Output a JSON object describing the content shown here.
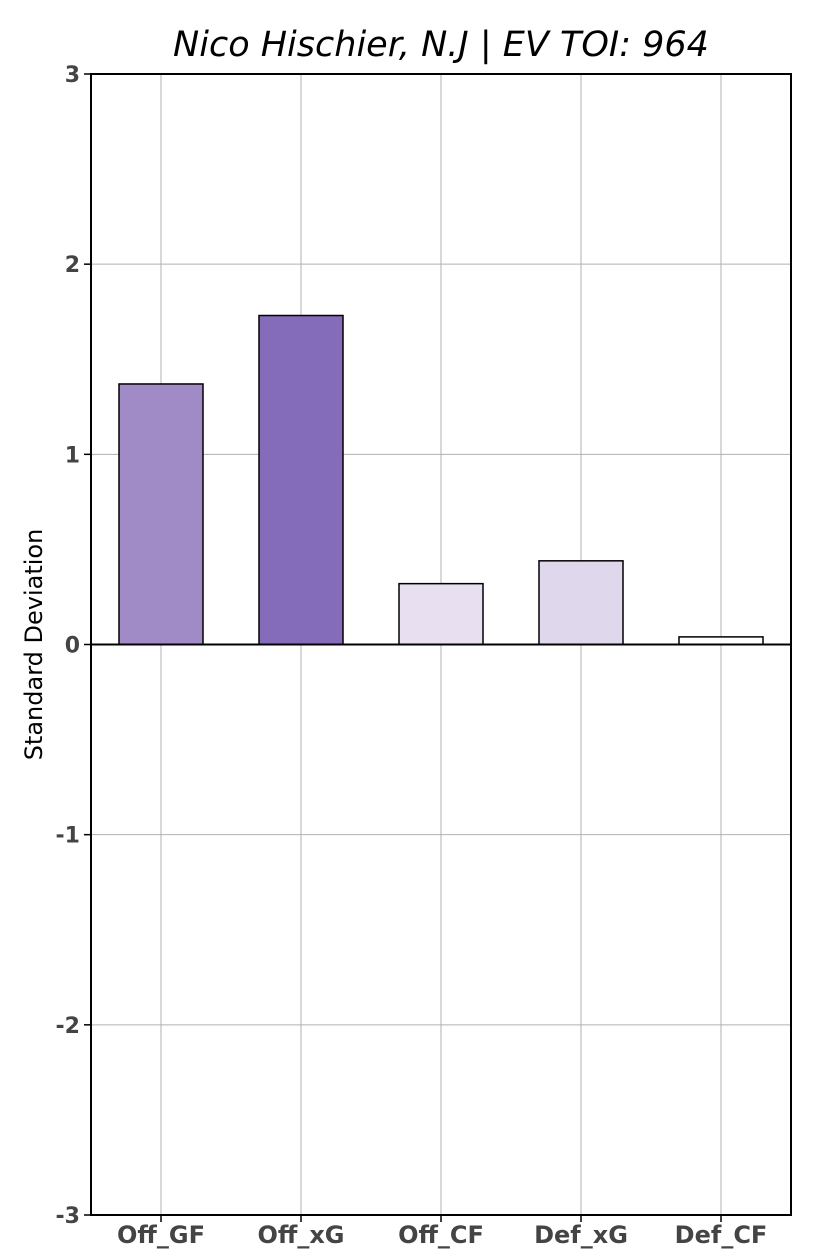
{
  "chart_data": {
    "type": "bar",
    "title": "Nico Hischier, N.J  |  EV TOI: 964",
    "xlabel": "",
    "ylabel": "Standard Deviation",
    "categories": [
      "Off_GF",
      "Off_xG",
      "Off_CF",
      "Def_xG",
      "Def_CF"
    ],
    "values": [
      1.37,
      1.73,
      0.32,
      0.44,
      0.04
    ],
    "bar_colors": [
      "#a08bc6",
      "#856cba",
      "#e8e0f1",
      "#dfd7ec",
      "#ffffff"
    ],
    "ylim": [
      -3,
      3
    ],
    "yticks": [
      3,
      2,
      1,
      0,
      -1,
      -2,
      -3
    ],
    "ytick_labels": [
      "3",
      "2",
      "1",
      "0",
      "-1",
      "-2",
      "-3"
    ],
    "grid": true,
    "zero_line": true
  }
}
